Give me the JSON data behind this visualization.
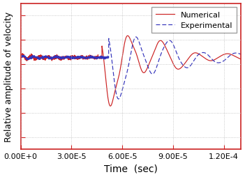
{
  "title": "",
  "xlabel": "Time  (sec)",
  "ylabel": "Relative amplitude of velocity",
  "xlim": [
    0,
    0.00013
  ],
  "xticks": [
    0,
    3e-05,
    6e-05,
    9e-05,
    0.00012
  ],
  "xtick_labels": [
    "0.00E+0",
    "3.00E-5",
    "6.00E-5",
    "9.00E-5",
    "1.20E-4"
  ],
  "numerical_color": "#cc2222",
  "experimental_color": "#3333bb",
  "grid_color": "#bbbbbb",
  "border_color": "#cc2222",
  "legend_labels": [
    "Numerical",
    "Experimental"
  ],
  "xlabel_fontsize": 10,
  "ylabel_fontsize": 9,
  "tick_fontsize": 8,
  "yticks": [
    -0.9,
    -0.6,
    -0.3,
    0.0,
    0.3,
    0.6
  ],
  "ylim": [
    -1.05,
    0.75
  ]
}
